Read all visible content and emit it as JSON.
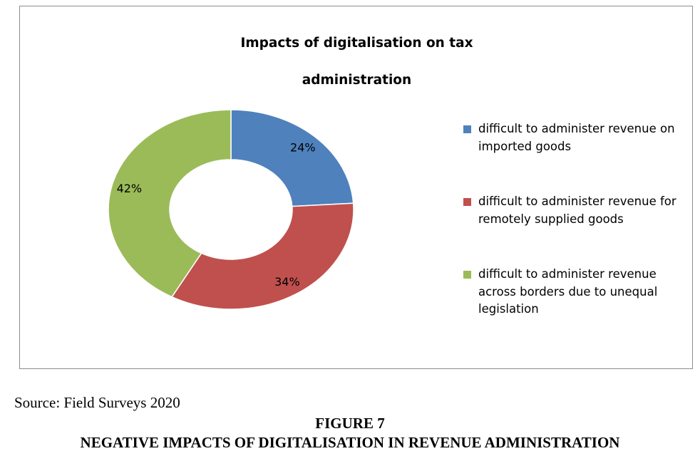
{
  "chart_data": {
    "type": "pie",
    "title": "Impacts of digitalisation on tax administration",
    "slices": [
      {
        "label": "difficult to administer revenue on imported goods",
        "value": 24,
        "display": "24%",
        "color": "#4F81BD"
      },
      {
        "label": "difficult to administer revenue for remotely supplied goods",
        "value": 34,
        "display": "34%",
        "color": "#C0504D"
      },
      {
        "label": "difficult to administer revenue across borders due to unequal legislation",
        "value": 42,
        "display": "42%",
        "color": "#9BBB59"
      }
    ],
    "donut": true,
    "legend_position": "right"
  },
  "source": "Source: Field Surveys 2020",
  "figure": {
    "number": "FIGURE 7",
    "caption": "NEGATIVE IMPACTS OF DIGITALISATION IN REVENUE ADMINISTRATION"
  }
}
